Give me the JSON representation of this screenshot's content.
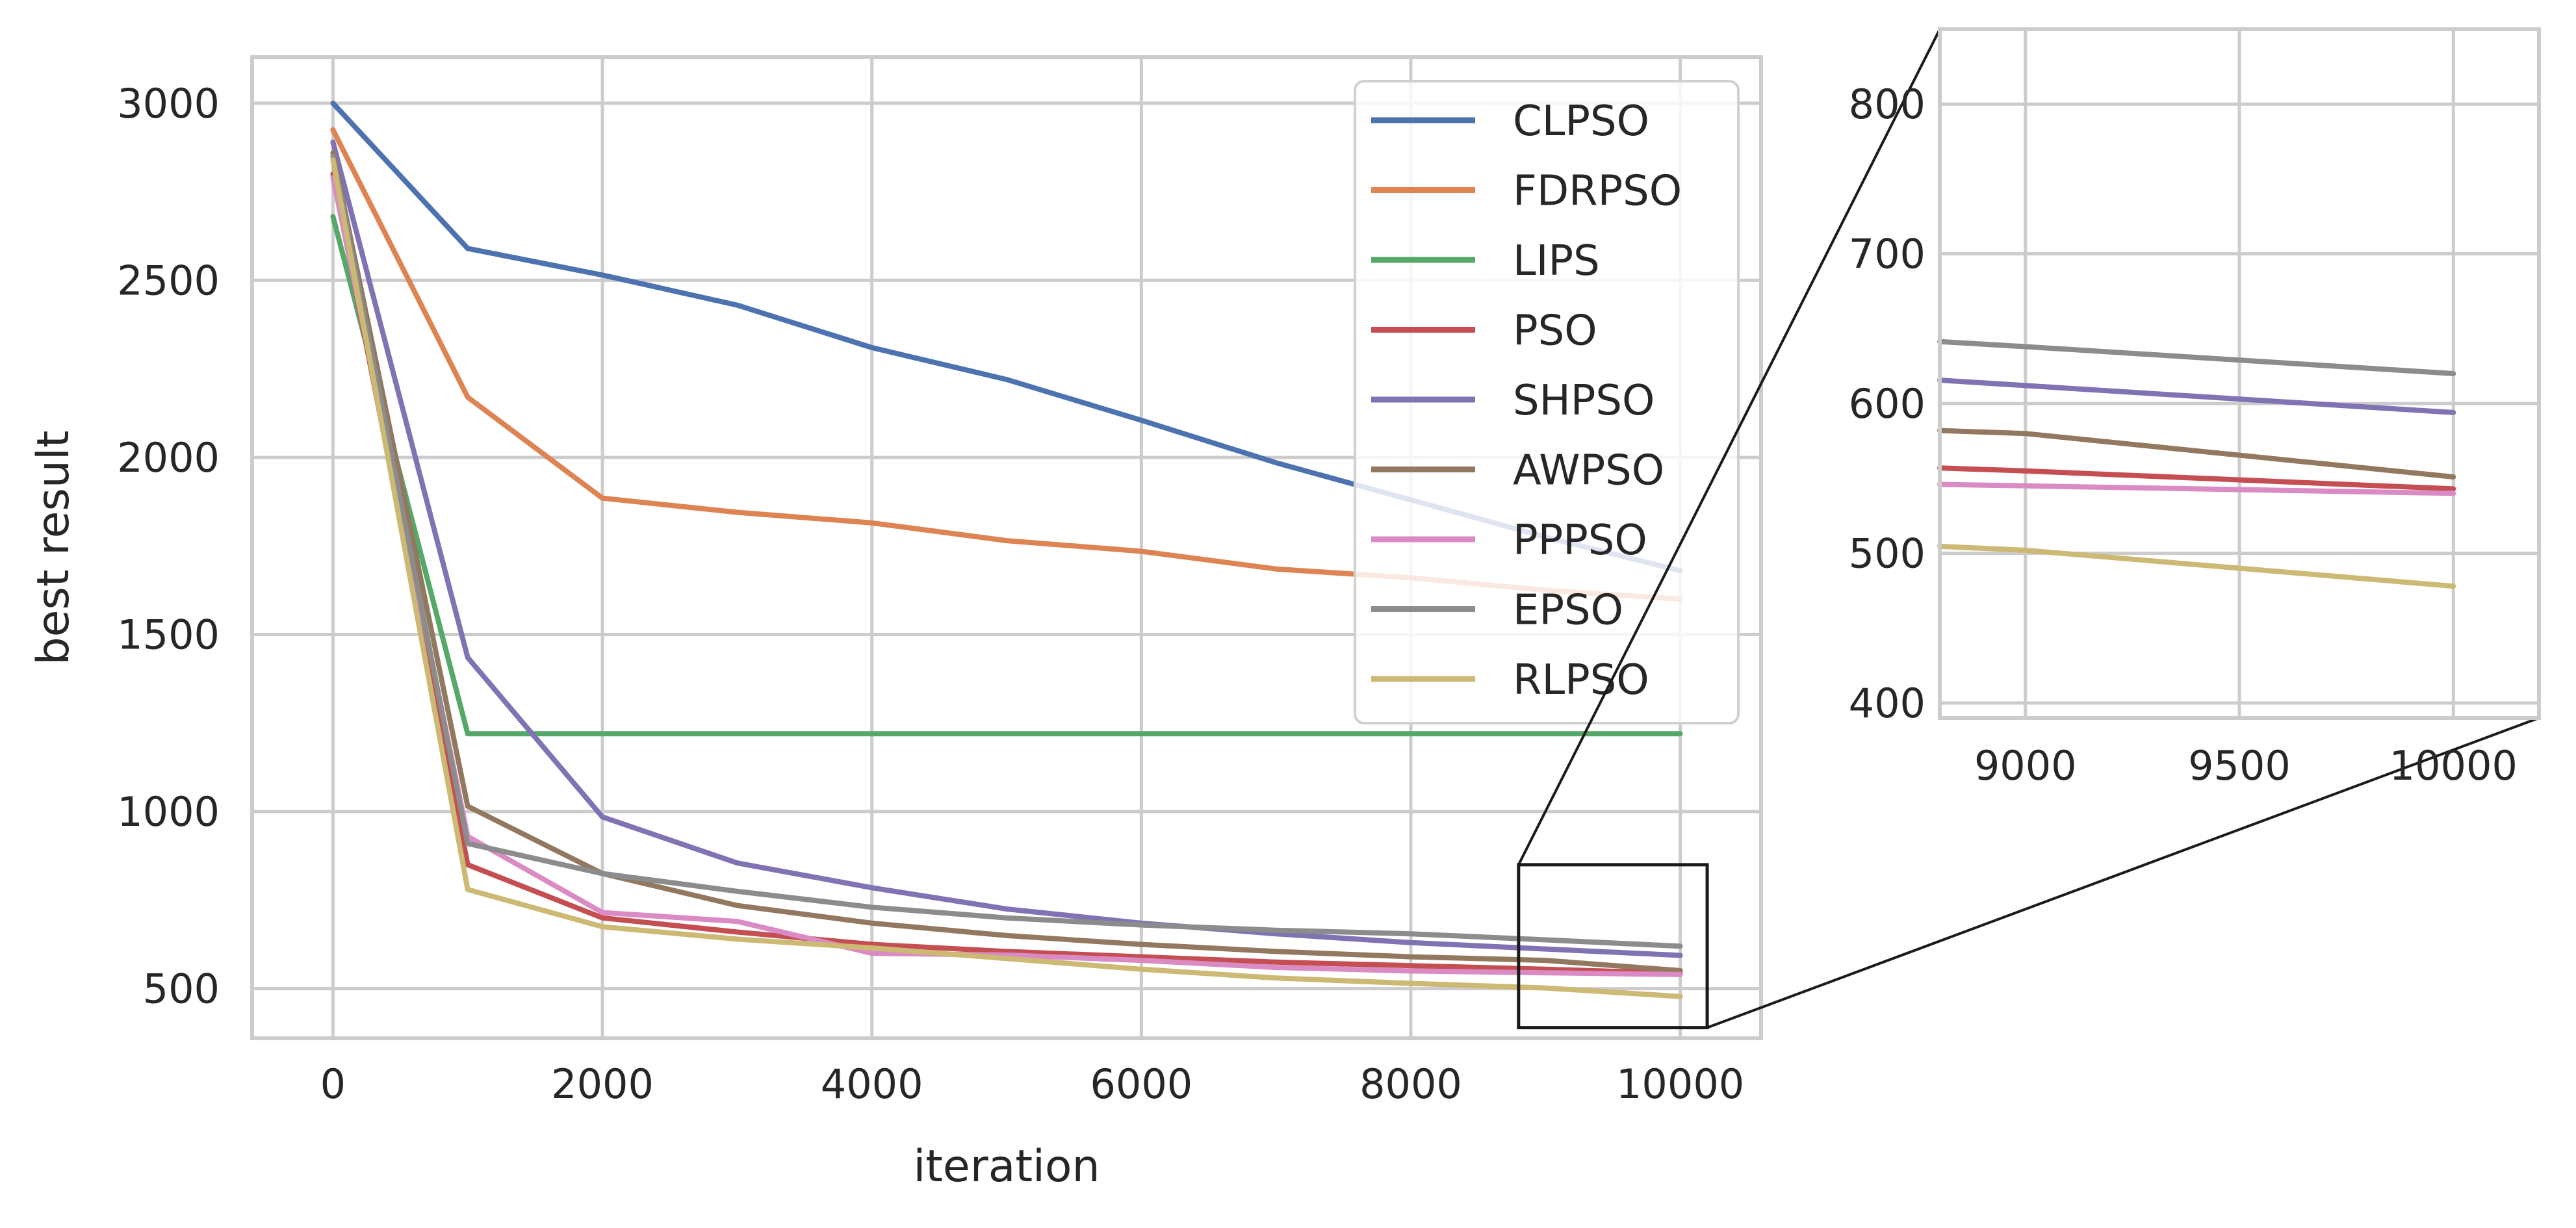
{
  "chart_data": {
    "type": "line",
    "xlabel": "iteration",
    "ylabel": "best result",
    "xlim": [
      -600,
      10600
    ],
    "ylim": [
      360,
      3130
    ],
    "x_ticks": [
      "0",
      "2000",
      "4000",
      "6000",
      "8000",
      "10000"
    ],
    "y_ticks": [
      "500",
      "1000",
      "1500",
      "2000",
      "2500",
      "3000"
    ],
    "legend_position": "top-right",
    "x": [
      0,
      1000,
      2000,
      3000,
      4000,
      5000,
      6000,
      7000,
      8000,
      9000,
      10000
    ],
    "series": [
      {
        "name": "CLPSO",
        "color": "#4c72b0",
        "values": [
          3000,
          2590,
          2515,
          2430,
          2310,
          2220,
          2105,
          1985,
          1880,
          1775,
          1680
        ]
      },
      {
        "name": "FDRPSO",
        "color": "#dd8452",
        "values": [
          2925,
          2170,
          1885,
          1845,
          1815,
          1765,
          1735,
          1685,
          1660,
          1625,
          1600
        ]
      },
      {
        "name": "LIPS",
        "color": "#55a868",
        "values": [
          2680,
          1220,
          1220,
          1220,
          1220,
          1220,
          1220,
          1220,
          1220,
          1220,
          1220
        ]
      },
      {
        "name": "PSO",
        "color": "#c44e52",
        "values": [
          2800,
          850,
          700,
          660,
          625,
          605,
          590,
          575,
          565,
          555,
          543
        ]
      },
      {
        "name": "SHPSO",
        "color": "#8172b3",
        "values": [
          2890,
          1435,
          985,
          855,
          785,
          725,
          685,
          655,
          630,
          612,
          594
        ]
      },
      {
        "name": "AWPSO",
        "color": "#937860",
        "values": [
          2860,
          1015,
          825,
          735,
          685,
          650,
          625,
          605,
          590,
          580,
          551
        ]
      },
      {
        "name": "PPPSO",
        "color": "#da8bc3",
        "values": [
          2790,
          930,
          715,
          690,
          600,
          595,
          580,
          560,
          550,
          545,
          540
        ]
      },
      {
        "name": "EPSO",
        "color": "#8c8c8c",
        "values": [
          2850,
          910,
          825,
          775,
          730,
          700,
          680,
          665,
          655,
          638,
          620
        ]
      },
      {
        "name": "RLPSO",
        "color": "#ccb974",
        "values": [
          2840,
          780,
          675,
          640,
          615,
          585,
          555,
          530,
          515,
          502,
          478
        ]
      }
    ],
    "inset": {
      "xlim": [
        8800,
        10200
      ],
      "ylim": [
        390,
        850
      ],
      "x_ticks": [
        "9000",
        "9500",
        "10000"
      ],
      "y_ticks": [
        "400",
        "500",
        "600",
        "700",
        "800"
      ],
      "zoom_box_x": [
        8800,
        10200
      ],
      "zoom_box_y": [
        390,
        850
      ]
    }
  }
}
